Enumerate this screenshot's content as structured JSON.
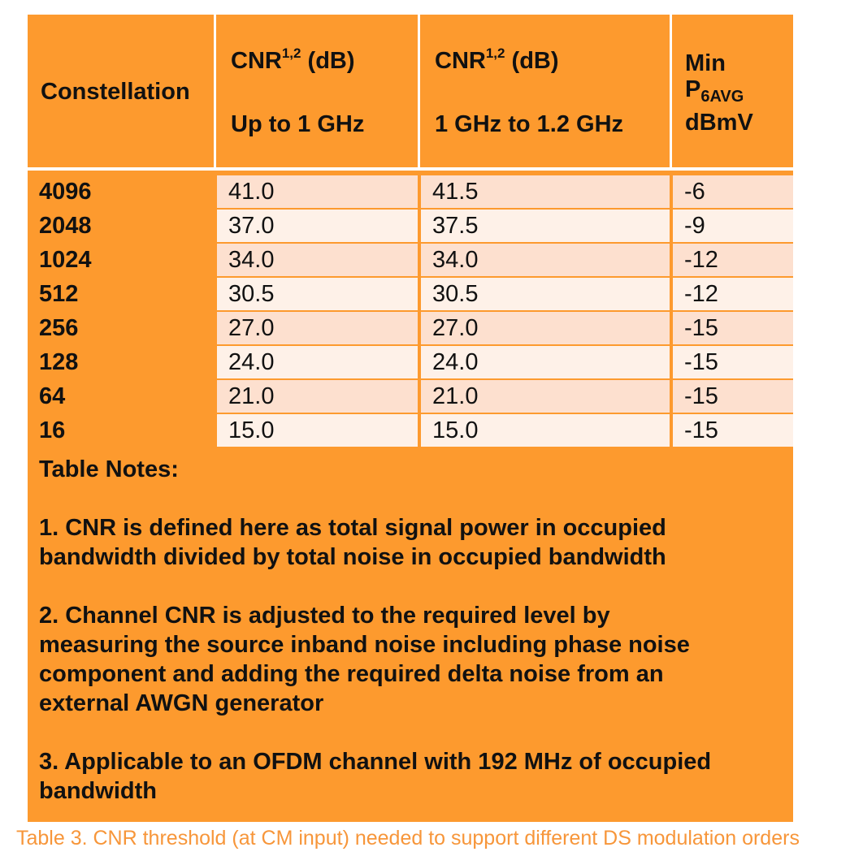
{
  "header": {
    "constellation": "Constellation",
    "cnr_label": "CNR",
    "cnr_sup": "1,2",
    "cnr_unit": "(dB)",
    "col1_sub": "Up to 1 GHz",
    "col2_sub": "1 GHz to 1.2 GHz",
    "min_label": "Min",
    "p_label": "P",
    "p_sub": "6AVG",
    "dbmv_label": "dBmV"
  },
  "rows": [
    {
      "constellation": "4096",
      "cnr_1ghz": "41.0",
      "cnr_1_2ghz": "41.5",
      "min_p6avg": "-6"
    },
    {
      "constellation": "2048",
      "cnr_1ghz": "37.0",
      "cnr_1_2ghz": "37.5",
      "min_p6avg": "-9"
    },
    {
      "constellation": "1024",
      "cnr_1ghz": "34.0",
      "cnr_1_2ghz": "34.0",
      "min_p6avg": "-12"
    },
    {
      "constellation": "512",
      "cnr_1ghz": "30.5",
      "cnr_1_2ghz": "30.5",
      "min_p6avg": "-12"
    },
    {
      "constellation": "256",
      "cnr_1ghz": "27.0",
      "cnr_1_2ghz": "27.0",
      "min_p6avg": "-15"
    },
    {
      "constellation": "128",
      "cnr_1ghz": "24.0",
      "cnr_1_2ghz": "24.0",
      "min_p6avg": "-15"
    },
    {
      "constellation": "64",
      "cnr_1ghz": "21.0",
      "cnr_1_2ghz": "21.0",
      "min_p6avg": "-15"
    },
    {
      "constellation": "16",
      "cnr_1ghz": "15.0",
      "cnr_1_2ghz": "15.0",
      "min_p6avg": "-15"
    }
  ],
  "notes": {
    "title": "Table Notes:",
    "items": [
      "1. CNR is defined here as total signal power in occupied\nbandwidth divided by total noise in occupied bandwidth",
      "2. Channel CNR is adjusted to the required level by\nmeasuring the source inband noise including phase noise\ncomponent and adding the required delta noise from an\nexternal AWGN generator",
      "3. Applicable to an OFDM channel with 192 MHz of occupied\nbandwidth"
    ]
  },
  "caption": "Table 3. CNR threshold (at CM input) needed to support different DS modulation orders",
  "colors": {
    "orange": "#fd9a2e",
    "row_dark": "#fde0cf",
    "row_light": "#fef1e8",
    "caption": "#f7963a"
  }
}
